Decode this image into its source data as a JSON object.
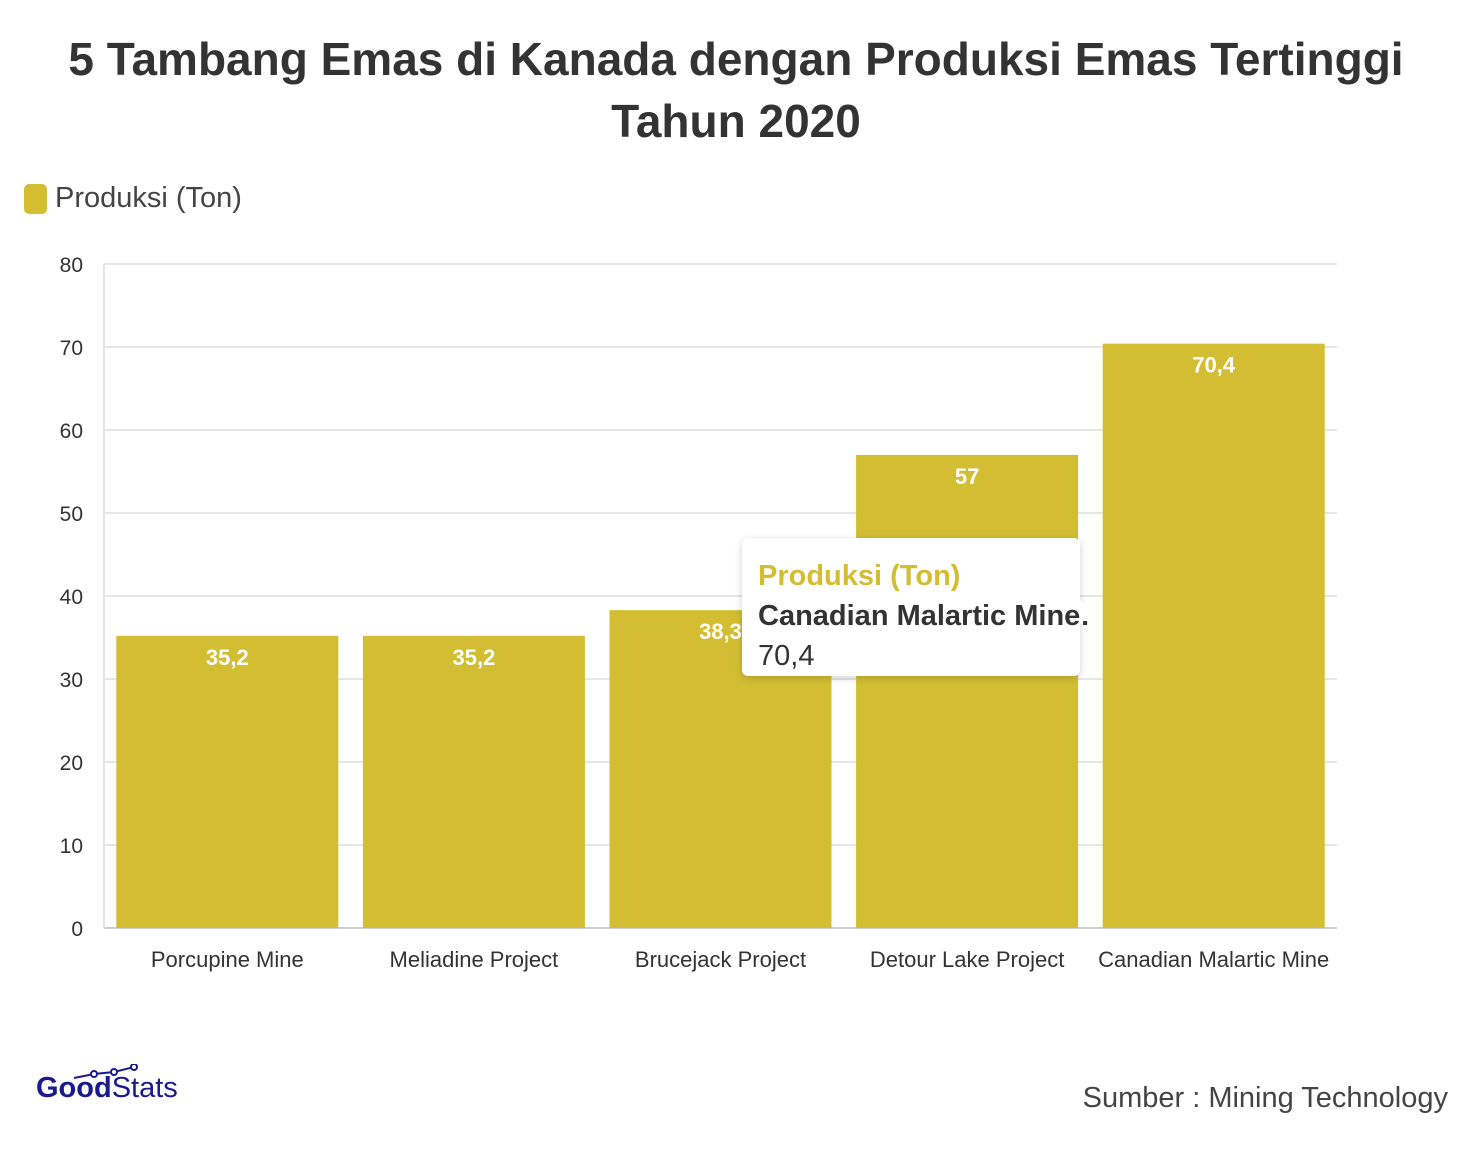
{
  "chart_data": {
    "type": "bar",
    "title": "5 Tambang Emas di Kanada dengan Produksi Emas Tertinggi Tahun 2020",
    "categories": [
      "Porcupine Mine",
      "Meliadine Project",
      "Brucejack Project",
      "Detour Lake Project",
      "Canadian Malartic Mine"
    ],
    "series": [
      {
        "name": "Produksi (Ton)",
        "values": [
          35.2,
          35.2,
          38.3,
          57,
          70.4
        ],
        "labels": [
          "35,2",
          "35,2",
          "38,3",
          "57",
          "70,4"
        ]
      }
    ],
    "ylim": [
      0,
      80
    ],
    "yticks": [
      "0",
      "10",
      "20",
      "30",
      "40",
      "50",
      "60",
      "70",
      "80"
    ],
    "grid": true,
    "legend": "top-left",
    "colors": {
      "bar": "#d3bd33"
    }
  },
  "tooltip": {
    "series": "Produksi (Ton)",
    "category": "Canadian Malartic Mine:",
    "value": "70,4"
  },
  "footer": {
    "logo_bold": "Good",
    "logo_light": "Stats",
    "source": "Sumber : Mining Technology"
  }
}
